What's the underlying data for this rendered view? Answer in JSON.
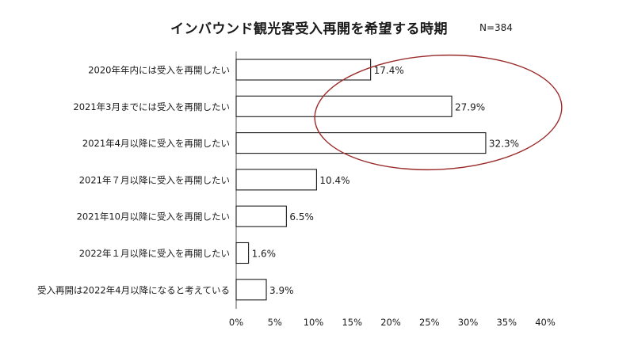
{
  "chart_data": {
    "type": "bar",
    "orientation": "horizontal",
    "title": "インバウンド観光客受入再開を希望する時期",
    "annotation": "N=384",
    "categories": [
      "2020年年内には受入を再開したい",
      "2021年3月までには受入を再開したい",
      "2021年4月以降に受入を再開したい",
      "2021年７月以降に受入を再開したい",
      "2021年10月以降に受入を再開したい",
      "2022年１月以降に受入を再開したい",
      "受入再開は2022年4月以降になると考えている"
    ],
    "values": [
      17.4,
      27.9,
      32.3,
      10.4,
      6.5,
      1.6,
      3.9
    ],
    "value_labels": [
      "17.4%",
      "27.9%",
      "32.3%",
      "10.4%",
      "6.5%",
      "1.6%",
      "3.9%"
    ],
    "x_ticks": [
      0,
      5,
      10,
      15,
      20,
      25,
      30,
      35,
      40
    ],
    "x_tick_labels": [
      "0%",
      "5%",
      "10%",
      "15%",
      "20%",
      "25%",
      "30%",
      "35%",
      "40%"
    ],
    "xlim": [
      0,
      40
    ],
    "xlabel": "",
    "ylabel": "",
    "grid": false,
    "legend": "none",
    "highlight_ellipse": {
      "categories": [
        "2020年年内には受入を再開したい",
        "2021年3月までには受入を再開したい",
        "2021年4月以降に受入を再開したい"
      ],
      "color": "#9b2a2a"
    },
    "colors": {
      "bar_fill": "#ffffff",
      "bar_stroke": "#1a1a1a",
      "axis": "#555555",
      "text": "#1a1a1a"
    }
  }
}
